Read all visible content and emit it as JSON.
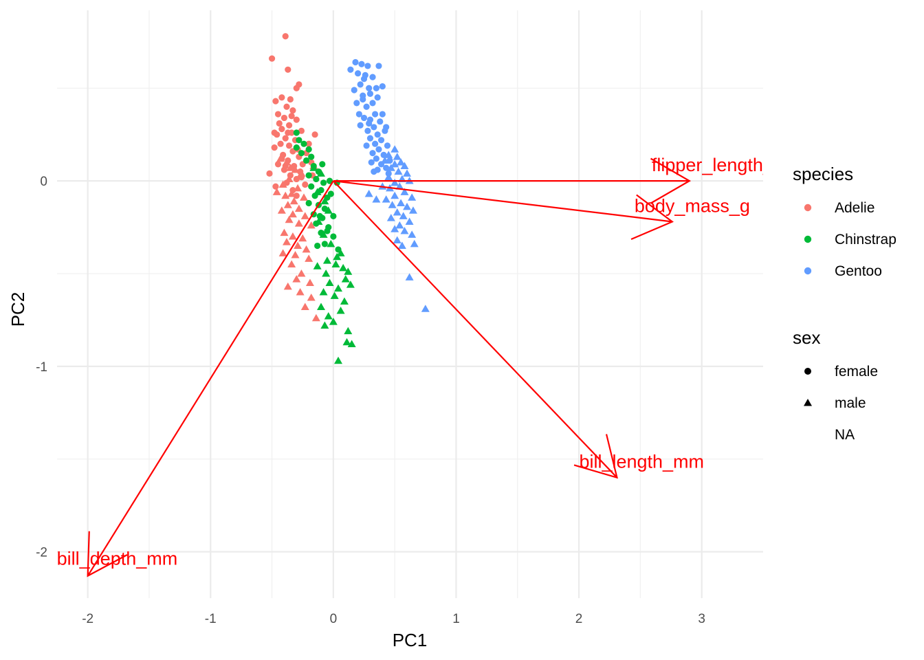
{
  "chart_data": {
    "type": "scatter",
    "subtype": "pca-biplot",
    "title": "",
    "xlabel": "PC1",
    "ylabel": "PC2",
    "xlim": [
      -2.25,
      3.5
    ],
    "ylim": [
      -2.25,
      0.92
    ],
    "x_ticks": [
      -2,
      -1,
      0,
      1,
      2,
      3
    ],
    "y_ticks": [
      -2,
      -1,
      0
    ],
    "grid": true,
    "legend_position": "right",
    "color_legend": {
      "title": "species",
      "items": [
        {
          "label": "Adelie",
          "color": "#f8766d"
        },
        {
          "label": "Chinstrap",
          "color": "#00ba38"
        },
        {
          "label": "Gentoo",
          "color": "#619cff"
        }
      ]
    },
    "shape_legend": {
      "title": "sex",
      "items": [
        {
          "label": "female",
          "shape": "circle"
        },
        {
          "label": "male",
          "shape": "triangle"
        },
        {
          "label": "NA",
          "shape": "none"
        }
      ]
    },
    "loading_color": "#ff0000",
    "loadings": [
      {
        "name": "flipper_length_mm",
        "x": 2.9,
        "y": 0.0
      },
      {
        "name": "body_mass_g",
        "x": 2.76,
        "y": -0.22
      },
      {
        "name": "bill_length_mm",
        "x": 2.31,
        "y": -1.6
      },
      {
        "name": "bill_depth_mm",
        "x": -2.0,
        "y": -2.13
      }
    ],
    "series": [
      {
        "name": "Adelie",
        "color": "#f8766d",
        "female": [
          [
            -0.39,
            0.78
          ],
          [
            -0.5,
            0.66
          ],
          [
            -0.37,
            0.6
          ],
          [
            -0.28,
            0.52
          ],
          [
            -0.3,
            0.5
          ],
          [
            -0.42,
            0.45
          ],
          [
            -0.35,
            0.44
          ],
          [
            -0.47,
            0.43
          ],
          [
            -0.38,
            0.4
          ],
          [
            -0.33,
            0.38
          ],
          [
            -0.45,
            0.36
          ],
          [
            -0.4,
            0.34
          ],
          [
            -0.3,
            0.33
          ],
          [
            -0.36,
            0.3
          ],
          [
            -0.42,
            0.28
          ],
          [
            -0.34,
            0.26
          ],
          [
            -0.26,
            0.27
          ],
          [
            -0.46,
            0.25
          ],
          [
            -0.39,
            0.23
          ],
          [
            -0.31,
            0.22
          ],
          [
            -0.43,
            0.2
          ],
          [
            -0.36,
            0.19
          ],
          [
            -0.15,
            0.25
          ],
          [
            -0.48,
            0.18
          ],
          [
            -0.33,
            0.16
          ],
          [
            -0.41,
            0.14
          ],
          [
            -0.28,
            0.13
          ],
          [
            -0.22,
            0.15
          ],
          [
            -0.37,
            0.11
          ],
          [
            -0.45,
            0.09
          ],
          [
            -0.32,
            0.08
          ],
          [
            -0.18,
            0.1
          ],
          [
            -0.4,
            0.06
          ],
          [
            -0.27,
            0.05
          ],
          [
            -0.35,
            0.03
          ],
          [
            -0.52,
            0.04
          ],
          [
            -0.3,
            0.01
          ],
          [
            -0.38,
            -0.01
          ],
          [
            -0.23,
            -0.02
          ],
          [
            -0.47,
            -0.03
          ],
          [
            -0.33,
            -0.05
          ],
          [
            -0.25,
            0.09
          ],
          [
            -0.42,
            0.12
          ],
          [
            -0.2,
            0.2
          ],
          [
            -0.17,
            0.03
          ],
          [
            -0.3,
            -0.08
          ],
          [
            -0.37,
            0.26
          ],
          [
            -0.44,
            0.31
          ],
          [
            -0.34,
            0.35
          ],
          [
            -0.29,
            0.17
          ],
          [
            -0.48,
            0.26
          ],
          [
            -0.26,
            0.02
          ],
          [
            -0.39,
            0.08
          ]
        ],
        "male": [
          [
            -0.43,
            0.12
          ],
          [
            -0.38,
            0.1
          ],
          [
            -0.31,
            0.06
          ],
          [
            -0.26,
            0.04
          ],
          [
            -0.36,
            0.01
          ],
          [
            -0.41,
            -0.02
          ],
          [
            -0.29,
            -0.04
          ],
          [
            -0.34,
            -0.07
          ],
          [
            -0.39,
            -0.08
          ],
          [
            -0.24,
            -0.09
          ],
          [
            -0.32,
            -0.11
          ],
          [
            -0.37,
            -0.13
          ],
          [
            -0.28,
            -0.15
          ],
          [
            -0.42,
            -0.16
          ],
          [
            -0.33,
            -0.18
          ],
          [
            -0.23,
            -0.19
          ],
          [
            -0.36,
            -0.21
          ],
          [
            -0.28,
            -0.23
          ],
          [
            -0.18,
            -0.24
          ],
          [
            -0.4,
            -0.28
          ],
          [
            -0.33,
            -0.3
          ],
          [
            -0.25,
            -0.31
          ],
          [
            -0.38,
            -0.33
          ],
          [
            -0.29,
            -0.35
          ],
          [
            -0.22,
            -0.37
          ],
          [
            -0.41,
            -0.39
          ],
          [
            -0.31,
            -0.4
          ],
          [
            -0.2,
            -0.42
          ],
          [
            -0.34,
            -0.45
          ],
          [
            -0.26,
            -0.5
          ],
          [
            -0.3,
            -0.53
          ],
          [
            -0.37,
            -0.57
          ],
          [
            -0.27,
            -0.6
          ],
          [
            -0.18,
            -0.63
          ],
          [
            -0.23,
            -0.68
          ],
          [
            -0.14,
            -0.74
          ],
          [
            -0.19,
            -0.55
          ],
          [
            -0.16,
            0.08
          ],
          [
            -0.46,
            -0.06
          ],
          [
            -0.35,
            0.07
          ]
        ]
      },
      {
        "name": "Chinstrap",
        "color": "#00ba38",
        "female": [
          [
            -0.3,
            0.26
          ],
          [
            -0.28,
            0.22
          ],
          [
            -0.24,
            0.2
          ],
          [
            -0.3,
            0.18
          ],
          [
            -0.2,
            0.17
          ],
          [
            -0.26,
            0.15
          ],
          [
            -0.18,
            0.13
          ],
          [
            -0.22,
            0.11
          ],
          [
            -0.16,
            0.08
          ],
          [
            -0.12,
            0.05
          ],
          [
            -0.2,
            0.03
          ],
          [
            -0.14,
            0.01
          ],
          [
            -0.08,
            -0.01
          ],
          [
            -0.18,
            -0.03
          ],
          [
            -0.1,
            -0.05
          ],
          [
            -0.15,
            -0.08
          ],
          [
            -0.05,
            -0.09
          ],
          [
            -0.2,
            -0.12
          ],
          [
            -0.12,
            -0.13
          ],
          [
            -0.07,
            -0.15
          ],
          [
            -0.16,
            -0.18
          ],
          [
            -0.09,
            -0.2
          ],
          [
            0.0,
            -0.19
          ],
          [
            -0.14,
            -0.23
          ],
          [
            -0.04,
            -0.25
          ],
          [
            -0.1,
            -0.28
          ],
          [
            0.0,
            -0.3
          ],
          [
            -0.07,
            -0.34
          ],
          [
            -0.13,
            -0.35
          ],
          [
            0.04,
            -0.37
          ],
          [
            -0.02,
            -0.07
          ],
          [
            0.03,
            -0.01
          ],
          [
            -0.03,
            0.0
          ],
          [
            -0.09,
            0.09
          ],
          [
            -0.11,
            -0.19
          ],
          [
            -0.05,
            -0.27
          ]
        ],
        "male": [
          [
            -0.16,
            0.07
          ],
          [
            -0.1,
            0.04
          ],
          [
            -0.13,
            -0.06
          ],
          [
            -0.07,
            -0.11
          ],
          [
            -0.04,
            -0.16
          ],
          [
            -0.12,
            -0.22
          ],
          [
            -0.08,
            -0.29
          ],
          [
            -0.02,
            -0.34
          ],
          [
            0.06,
            -0.39
          ],
          [
            -0.05,
            -0.43
          ],
          [
            0.02,
            -0.45
          ],
          [
            0.08,
            -0.47
          ],
          [
            0.12,
            -0.49
          ],
          [
            0.1,
            -0.53
          ],
          [
            -0.03,
            -0.55
          ],
          [
            0.04,
            -0.58
          ],
          [
            0.14,
            -0.56
          ],
          [
            -0.08,
            -0.6
          ],
          [
            0.01,
            -0.62
          ],
          [
            0.09,
            -0.65
          ],
          [
            -0.1,
            -0.68
          ],
          [
            0.06,
            -0.7
          ],
          [
            -0.04,
            -0.73
          ],
          [
            0.0,
            -0.76
          ],
          [
            -0.07,
            -0.78
          ],
          [
            0.12,
            -0.81
          ],
          [
            0.11,
            -0.87
          ],
          [
            0.15,
            -0.88
          ],
          [
            0.04,
            -0.97
          ],
          [
            -0.13,
            -0.46
          ],
          [
            0.03,
            -0.41
          ],
          [
            -0.06,
            -0.5
          ]
        ]
      },
      {
        "name": "Gentoo",
        "color": "#619cff",
        "female": [
          [
            0.18,
            0.64
          ],
          [
            0.23,
            0.63
          ],
          [
            0.28,
            0.62
          ],
          [
            0.37,
            0.62
          ],
          [
            0.14,
            0.6
          ],
          [
            0.2,
            0.58
          ],
          [
            0.25,
            0.55
          ],
          [
            0.32,
            0.56
          ],
          [
            0.22,
            0.52
          ],
          [
            0.29,
            0.5
          ],
          [
            0.35,
            0.5
          ],
          [
            0.4,
            0.51
          ],
          [
            0.17,
            0.49
          ],
          [
            0.3,
            0.47
          ],
          [
            0.36,
            0.45
          ],
          [
            0.24,
            0.44
          ],
          [
            0.19,
            0.42
          ],
          [
            0.32,
            0.42
          ],
          [
            0.27,
            0.4
          ],
          [
            0.21,
            0.36
          ],
          [
            0.34,
            0.36
          ],
          [
            0.4,
            0.36
          ],
          [
            0.25,
            0.34
          ],
          [
            0.3,
            0.33
          ],
          [
            0.38,
            0.32
          ],
          [
            0.22,
            0.3
          ],
          [
            0.33,
            0.29
          ],
          [
            0.28,
            0.27
          ],
          [
            0.42,
            0.27
          ],
          [
            0.36,
            0.25
          ],
          [
            0.3,
            0.23
          ],
          [
            0.39,
            0.22
          ],
          [
            0.34,
            0.2
          ],
          [
            0.27,
            0.19
          ],
          [
            0.44,
            0.19
          ],
          [
            0.37,
            0.17
          ],
          [
            0.32,
            0.15
          ],
          [
            0.41,
            0.14
          ],
          [
            0.35,
            0.12
          ],
          [
            0.46,
            0.11
          ],
          [
            0.31,
            0.1
          ],
          [
            0.39,
            0.09
          ],
          [
            0.43,
            0.07
          ],
          [
            0.36,
            0.06
          ],
          [
            0.45,
            0.04
          ],
          [
            0.33,
            0.05
          ],
          [
            0.29,
            0.31
          ],
          [
            0.24,
            0.46
          ],
          [
            0.43,
            0.29
          ],
          [
            0.26,
            0.57
          ]
        ],
        "male": [
          [
            0.5,
            0.17
          ],
          [
            0.45,
            0.14
          ],
          [
            0.52,
            0.13
          ],
          [
            0.42,
            0.11
          ],
          [
            0.5,
            0.09
          ],
          [
            0.55,
            0.1
          ],
          [
            0.58,
            0.08
          ],
          [
            0.47,
            0.07
          ],
          [
            0.53,
            0.05
          ],
          [
            0.6,
            0.04
          ],
          [
            0.45,
            0.02
          ],
          [
            0.56,
            0.01
          ],
          [
            0.5,
            -0.01
          ],
          [
            0.62,
            0.0
          ],
          [
            0.46,
            -0.04
          ],
          [
            0.54,
            -0.03
          ],
          [
            0.58,
            -0.06
          ],
          [
            0.5,
            -0.08
          ],
          [
            0.64,
            -0.09
          ],
          [
            0.43,
            -0.1
          ],
          [
            0.55,
            -0.12
          ],
          [
            0.48,
            -0.13
          ],
          [
            0.6,
            -0.14
          ],
          [
            0.52,
            -0.17
          ],
          [
            0.65,
            -0.16
          ],
          [
            0.57,
            -0.19
          ],
          [
            0.47,
            -0.2
          ],
          [
            0.62,
            -0.22
          ],
          [
            0.54,
            -0.24
          ],
          [
            0.5,
            -0.26
          ],
          [
            0.58,
            -0.27
          ],
          [
            0.64,
            -0.29
          ],
          [
            0.52,
            -0.32
          ],
          [
            0.56,
            -0.35
          ],
          [
            0.66,
            -0.34
          ],
          [
            0.62,
            -0.52
          ],
          [
            0.75,
            -0.69
          ],
          [
            0.29,
            -0.07
          ],
          [
            0.35,
            -0.1
          ],
          [
            0.4,
            -0.03
          ]
        ]
      }
    ]
  }
}
